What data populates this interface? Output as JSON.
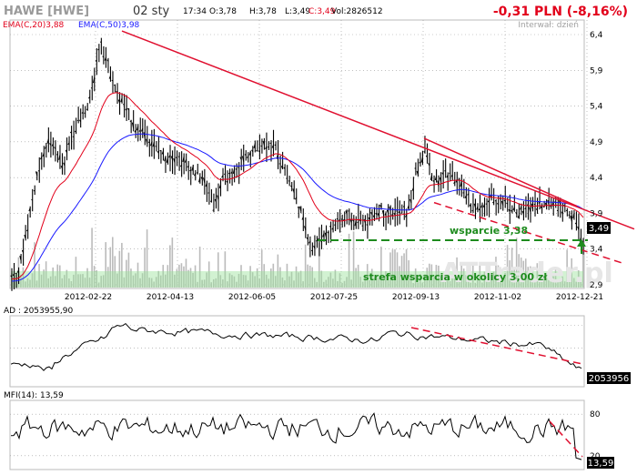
{
  "header": {
    "ticker": "HAWE [HWE]",
    "date": "02 sty",
    "time": "17:34",
    "open": "O:3,78",
    "high": "H:3,78",
    "low": "L:3,49",
    "close": "C:3,49",
    "volume": "Vol:2826512",
    "change": "-0,31 PLN (-8,16%)",
    "interval": "Interwał: dzień",
    "watermark": "ATTrader.pl",
    "legend_ema20": "EMA(C,20)3,88",
    "legend_ema50": "EMA(C,50)3,98"
  },
  "colors": {
    "change": "#e2001a",
    "ema20": "#e2001a",
    "ema50": "#1a1aff",
    "trend": "#e01030",
    "support": "#1e8b1e",
    "volume": "#bbbbbb",
    "volume_zone": "#9be39b",
    "price": "#000000",
    "grid": "#999999"
  },
  "chart_data": [
    {
      "type": "candlestick",
      "x_tick_labels": [
        "2012-02-22",
        "2012-04-13",
        "2012-06-05",
        "2012-07-25",
        "2012-09-13",
        "2012-11-02",
        "2012-12-21"
      ],
      "y_tick_labels": [
        "6,4",
        "5,9",
        "5,4",
        "4,9",
        "4,4",
        "3,9",
        "3,4",
        "2,9"
      ],
      "ylim": [
        2.85,
        6.55
      ],
      "last_price_label": "3,49",
      "series": [
        {
          "name": "EMA(C,20)",
          "value": 3.88
        },
        {
          "name": "EMA(C,50)",
          "value": 3.98
        }
      ],
      "annotations": {
        "support_line": {
          "label": "wsparcie 3,38",
          "value": 3.38
        },
        "support_zone": {
          "label": "strefa wsparcia w okolicy 3,00 zł",
          "value": 3.0
        }
      },
      "trendlines": [
        {
          "style": "solid",
          "from": [
            "2012-02-22",
            6.45
          ],
          "to": [
            "2013-01-02",
            3.68
          ]
        },
        {
          "style": "solid",
          "from": [
            "2012-09-13",
            4.95
          ],
          "to": [
            "2012-12-21",
            4.0
          ]
        },
        {
          "style": "dashed",
          "from": [
            "2012-09-20",
            4.05
          ],
          "to": [
            "2013-01-02",
            3.2
          ]
        }
      ],
      "grid": true
    },
    {
      "type": "line",
      "title": "AD : 2053955,90",
      "last_value_label": "2053956",
      "grid": true
    },
    {
      "type": "line",
      "title": "MFI(14): 13,59",
      "y_tick_labels": [
        "80",
        "20"
      ],
      "ylim": [
        0,
        100
      ],
      "levels": [
        80,
        20
      ],
      "last_value_label": "13,59",
      "grid": true
    }
  ]
}
